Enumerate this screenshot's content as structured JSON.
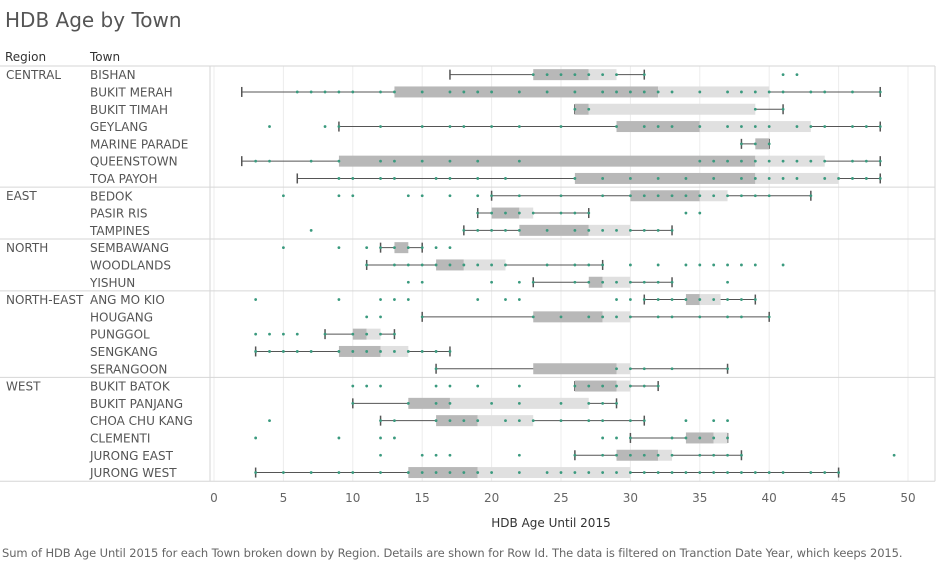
{
  "title": "HDB Age by Town",
  "caption": "Sum of HDB Age Until 2015 for each Town broken down by Region.  Details are shown for Row Id. The data is filtered on Tranction Date Year, which keeps 2015.",
  "colors": {
    "box_dark": "#b8b8b8",
    "box_light": "#e0e0e0",
    "point": "#3a9a7e",
    "whisker": "#555555",
    "gridline": "#ececec",
    "divider": "#d6d6d6",
    "text": "#555555"
  },
  "chart_data": {
    "type": "boxplot",
    "row_headers": [
      "Region",
      "Town"
    ],
    "xlabel": "HDB Age Until 2015",
    "xlim": [
      0,
      52
    ],
    "xticks": [
      0,
      5,
      10,
      15,
      20,
      25,
      30,
      35,
      40,
      45,
      50
    ],
    "grid": true,
    "regions": [
      {
        "name": "CENTRAL",
        "towns": [
          {
            "name": "BISHAN",
            "min": 17,
            "q1": 23,
            "median": 27,
            "q3": 29,
            "max": 31,
            "points": [
              23,
              24,
              25,
              26,
              27,
              28,
              29,
              31,
              41,
              42
            ]
          },
          {
            "name": "BUKIT MERAH",
            "min": 2,
            "q1": 13,
            "median": 32,
            "q3": 40,
            "max": 48,
            "points": [
              6,
              7,
              8,
              9,
              10,
              12,
              13,
              15,
              17,
              18,
              19,
              20,
              22,
              24,
              26,
              28,
              29,
              30,
              31,
              32,
              33,
              35,
              37,
              38,
              39,
              40,
              41,
              43,
              44,
              46,
              48
            ]
          },
          {
            "name": "BUKIT TIMAH",
            "min": 26,
            "q1": 26,
            "median": 27,
            "q3": 39,
            "max": 41,
            "points": [
              26,
              27,
              39,
              41
            ]
          },
          {
            "name": "GEYLANG",
            "min": 9,
            "q1": 29,
            "median": 35,
            "q3": 43,
            "max": 48,
            "points": [
              4,
              8,
              9,
              12,
              15,
              17,
              18,
              20,
              22,
              25,
              29,
              31,
              32,
              33,
              35,
              37,
              38,
              39,
              40,
              42,
              43,
              44,
              46,
              47,
              48
            ]
          },
          {
            "name": "MARINE PARADE",
            "min": 38,
            "q1": 39,
            "median": 40,
            "q3": 40,
            "max": 40,
            "points": [
              38,
              39,
              40
            ]
          },
          {
            "name": "QUEENSTOWN",
            "min": 2,
            "q1": 9,
            "median": 39,
            "q3": 44,
            "max": 48,
            "points": [
              3,
              4,
              7,
              9,
              12,
              13,
              15,
              17,
              19,
              22,
              35,
              36,
              37,
              38,
              39,
              40,
              41,
              42,
              43,
              44,
              46,
              47,
              48
            ]
          },
          {
            "name": "TOA PAYOH",
            "min": 6,
            "q1": 26,
            "median": 39,
            "q3": 45,
            "max": 48,
            "points": [
              9,
              10,
              12,
              13,
              16,
              17,
              19,
              21,
              26,
              28,
              30,
              32,
              34,
              36,
              38,
              39,
              40,
              41,
              42,
              44,
              45,
              46,
              47,
              48
            ]
          }
        ]
      },
      {
        "name": "EAST",
        "towns": [
          {
            "name": "BEDOK",
            "min": 20,
            "q1": 30,
            "median": 35,
            "q3": 37,
            "max": 43,
            "points": [
              5,
              9,
              10,
              14,
              15,
              17,
              19,
              20,
              22,
              25,
              28,
              30,
              31,
              32,
              33,
              34,
              35,
              36,
              37,
              38,
              39,
              40,
              43
            ]
          },
          {
            "name": "PASIR RIS",
            "min": 19,
            "q1": 20,
            "median": 22,
            "q3": 23,
            "max": 27,
            "points": [
              19,
              20,
              21,
              22,
              23,
              25,
              26,
              27,
              34,
              35
            ]
          },
          {
            "name": "TAMPINES",
            "min": 18,
            "q1": 22,
            "median": 27,
            "q3": 30,
            "max": 33,
            "points": [
              7,
              18,
              19,
              20,
              21,
              22,
              24,
              26,
              27,
              28,
              29,
              30,
              31,
              32,
              33
            ]
          }
        ]
      },
      {
        "name": "NORTH",
        "towns": [
          {
            "name": "SEMBAWANG",
            "min": 12,
            "q1": 13,
            "median": 14,
            "q3": 14,
            "max": 15,
            "points": [
              5,
              9,
              11,
              12,
              13,
              14,
              15,
              16,
              17
            ]
          },
          {
            "name": "WOODLANDS",
            "min": 11,
            "q1": 16,
            "median": 18,
            "q3": 21,
            "max": 28,
            "points": [
              11,
              13,
              14,
              15,
              16,
              17,
              18,
              19,
              20,
              21,
              24,
              26,
              27,
              28,
              30,
              32,
              34,
              35,
              36,
              37,
              38,
              39,
              41
            ]
          },
          {
            "name": "YISHUN",
            "min": 23,
            "q1": 27,
            "median": 28,
            "q3": 30,
            "max": 33,
            "points": [
              14,
              15,
              20,
              22,
              23,
              26,
              27,
              28,
              29,
              30,
              31,
              32,
              33,
              37
            ]
          }
        ]
      },
      {
        "name": "NORTH-EAST",
        "towns": [
          {
            "name": "ANG MO KIO",
            "min": 31,
            "q1": 34,
            "median": 35,
            "q3": 36.5,
            "max": 39,
            "points": [
              3,
              9,
              12,
              13,
              14,
              19,
              21,
              22,
              29,
              30,
              31,
              32,
              33,
              34,
              35,
              36,
              37,
              38,
              39
            ]
          },
          {
            "name": "HOUGANG",
            "min": 15,
            "q1": 23,
            "median": 28,
            "q3": 30,
            "max": 40,
            "points": [
              11,
              12,
              15,
              23,
              25,
              27,
              28,
              29,
              30,
              32,
              33,
              35,
              37,
              38,
              40
            ]
          },
          {
            "name": "PUNGGOL",
            "min": 8,
            "q1": 10,
            "median": 11,
            "q3": 12,
            "max": 13,
            "points": [
              3,
              4,
              5,
              6,
              8,
              10,
              11,
              12,
              13
            ]
          },
          {
            "name": "SENGKANG",
            "min": 3,
            "q1": 9,
            "median": 12,
            "q3": 14,
            "max": 17,
            "points": [
              3,
              4,
              5,
              6,
              7,
              9,
              10,
              11,
              12,
              13,
              14,
              15,
              16,
              17
            ]
          },
          {
            "name": "SERANGOON",
            "min": 16,
            "q1": 23,
            "median": 29,
            "q3": 30,
            "max": 37,
            "points": [
              16,
              29,
              30,
              31,
              33,
              37
            ]
          }
        ]
      },
      {
        "name": "WEST",
        "towns": [
          {
            "name": "BUKIT BATOK",
            "min": 26,
            "q1": 26,
            "median": 29,
            "q3": 30,
            "max": 32,
            "points": [
              10,
              11,
              12,
              16,
              17,
              19,
              22,
              26,
              27,
              28,
              29,
              30,
              31,
              32
            ]
          },
          {
            "name": "BUKIT PANJANG",
            "min": 10,
            "q1": 14,
            "median": 17,
            "q3": 27,
            "max": 29,
            "points": [
              10,
              14,
              16,
              17,
              20,
              22,
              25,
              27,
              28,
              29
            ]
          },
          {
            "name": "CHOA CHU KANG",
            "min": 12,
            "q1": 16,
            "median": 19,
            "q3": 23,
            "max": 31,
            "points": [
              4,
              12,
              13,
              16,
              17,
              18,
              19,
              21,
              22,
              23,
              25,
              27,
              28,
              30,
              31,
              34,
              36,
              37
            ]
          },
          {
            "name": "CLEMENTI",
            "min": 30,
            "q1": 34,
            "median": 36,
            "q3": 37,
            "max": 37,
            "points": [
              3,
              9,
              12,
              13,
              28,
              29,
              30,
              33,
              34,
              35,
              36,
              37
            ]
          },
          {
            "name": "JURONG EAST",
            "min": 26,
            "q1": 29,
            "median": 32,
            "q3": 33,
            "max": 38,
            "points": [
              12,
              15,
              16,
              17,
              22,
              26,
              28,
              29,
              30,
              31,
              32,
              33,
              35,
              36,
              37,
              38,
              49
            ]
          },
          {
            "name": "JURONG WEST",
            "min": 3,
            "q1": 14,
            "median": 19,
            "q3": 30,
            "max": 45,
            "points": [
              3,
              5,
              7,
              9,
              10,
              12,
              14,
              15,
              16,
              17,
              18,
              19,
              20,
              22,
              24,
              25,
              26,
              27,
              28,
              29,
              30,
              31,
              32,
              33,
              34,
              35,
              36,
              37,
              38,
              39,
              40,
              41,
              43,
              44,
              45
            ]
          }
        ]
      }
    ]
  }
}
